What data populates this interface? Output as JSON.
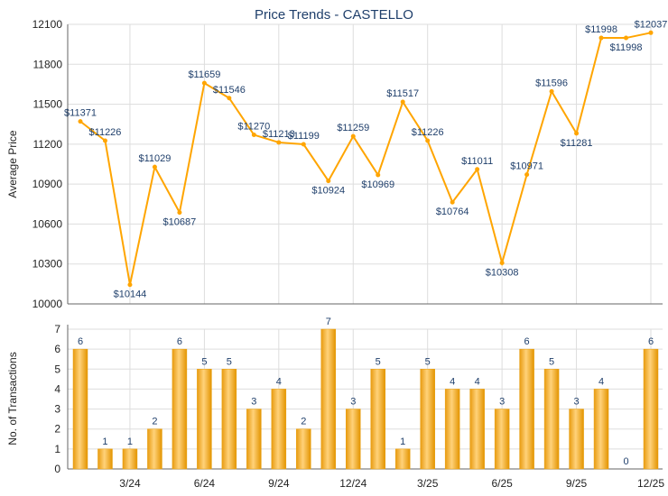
{
  "chart_data": [
    {
      "type": "line",
      "title": "Price Trends - CASTELLO",
      "xlabel": "",
      "ylabel": "Average Price",
      "ylim": [
        10000,
        12100
      ],
      "yticks": [
        10000,
        10300,
        10600,
        10900,
        11200,
        11500,
        11800,
        12100
      ],
      "grid": true,
      "color": "#FFA500",
      "x_tick_labels": [
        "3/24",
        "6/24",
        "9/24",
        "12/24",
        "3/25",
        "6/25",
        "9/25",
        "12/25"
      ],
      "x_tick_indices": [
        2,
        5,
        8,
        11,
        14,
        17,
        20,
        23
      ],
      "values": [
        11371,
        11226,
        10144,
        11029,
        10687,
        11659,
        11546,
        11270,
        11213,
        11199,
        10924,
        11259,
        10969,
        11517,
        11226,
        10764,
        11011,
        10308,
        10971,
        11596,
        11281,
        11998,
        11998,
        12037
      ],
      "labels": [
        "$11371",
        "$11226",
        "$10144",
        "$11029",
        "$10687",
        "$11659",
        "$11546",
        "$11270",
        "$11213",
        "$11199",
        "$10924",
        "$11259",
        "$10969",
        "$11517",
        "$11226",
        "$10764",
        "$11011",
        "$10308",
        "$10971",
        "$11596",
        "$11281",
        "$11998",
        "$11998",
        "$12037"
      ]
    },
    {
      "type": "bar",
      "xlabel": "",
      "ylabel": "No. of Transactions",
      "ylim": [
        0,
        7
      ],
      "yticks": [
        0,
        1,
        2,
        3,
        4,
        5,
        6,
        7
      ],
      "grid": true,
      "color": "#F5B323",
      "x_tick_labels": [
        "3/24",
        "6/24",
        "9/24",
        "12/24",
        "3/25",
        "6/25",
        "9/25",
        "12/25"
      ],
      "x_tick_indices": [
        2,
        5,
        8,
        11,
        14,
        17,
        20,
        23
      ],
      "values": [
        6,
        1,
        1,
        2,
        6,
        5,
        5,
        3,
        4,
        2,
        7,
        3,
        5,
        1,
        5,
        4,
        4,
        3,
        6,
        5,
        3,
        4,
        0,
        6
      ]
    }
  ]
}
